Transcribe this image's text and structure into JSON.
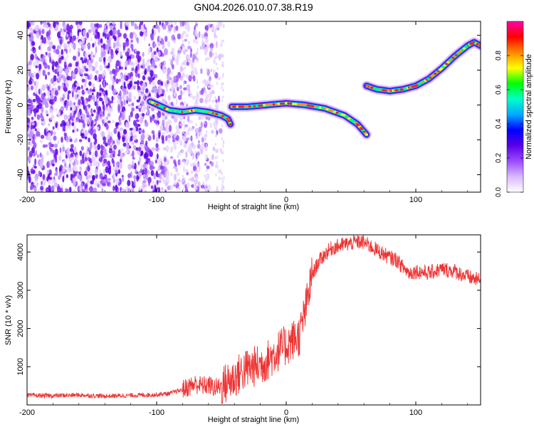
{
  "title": "GN04.2026.010.07.38.R19",
  "chart_data": [
    {
      "type": "heatmap",
      "xlabel": "Height of straight line (km)",
      "ylabel": "Frequency (Hz)",
      "xlim": [
        -200,
        150
      ],
      "ylim": [
        -50,
        48
      ],
      "xticks": [
        -200,
        -100,
        0,
        100
      ],
      "yticks": [
        -40,
        -20,
        0,
        20,
        40
      ],
      "colorbar": {
        "label": "Normalized spectral amplitude",
        "range": [
          0,
          1
        ],
        "ticks": [
          "0.0",
          "0.2",
          "0.4",
          "0.6",
          "0.8"
        ],
        "colors": [
          "#ffffff",
          "#d9b8ff",
          "#9a4cff",
          "#5a00e6",
          "#0000ff",
          "#00aaff",
          "#00ffcc",
          "#00ff00",
          "#ffff00",
          "#ff8800",
          "#ff0000",
          "#ff00aa"
        ]
      },
      "noise_region": {
        "x": [
          -200,
          -50
        ],
        "frequency": [
          -50,
          48
        ],
        "amplitude": 0.12
      },
      "ridge_segments": [
        {
          "name": "scattered",
          "points": [
            [
              -105,
              2
            ],
            [
              -90,
              -3
            ],
            [
              -80,
              -4
            ],
            [
              -70,
              -3
            ],
            [
              -60,
              -4
            ],
            [
              -50,
              -6
            ],
            [
              -45,
              -8
            ],
            [
              -43,
              -11
            ]
          ]
        },
        {
          "name": "middle",
          "points": [
            [
              -42,
              -1
            ],
            [
              -30,
              -1
            ],
            [
              -15,
              0
            ],
            [
              0,
              1
            ],
            [
              15,
              0
            ],
            [
              30,
              -2
            ],
            [
              45,
              -6
            ],
            [
              55,
              -11
            ],
            [
              62,
              -17
            ]
          ]
        },
        {
          "name": "upper",
          "points": [
            [
              62,
              11
            ],
            [
              70,
              9
            ],
            [
              80,
              8
            ],
            [
              90,
              9
            ],
            [
              100,
              11
            ],
            [
              110,
              15
            ],
            [
              120,
              21
            ],
            [
              130,
              28
            ],
            [
              140,
              34
            ],
            [
              145,
              36
            ],
            [
              150,
              34
            ]
          ]
        }
      ]
    },
    {
      "type": "line",
      "xlabel": "Height of straight line (km)",
      "ylabel": "SNR (10 * v/v)",
      "xlim": [
        -200,
        150
      ],
      "ylim": [
        0,
        4450
      ],
      "xticks": [
        -200,
        -100,
        0,
        100
      ],
      "yticks": [
        1000,
        2000,
        3000,
        4000
      ],
      "color": "#ee3333",
      "series": [
        {
          "name": "SNR",
          "x": [
            -200,
            -180,
            -160,
            -140,
            -120,
            -100,
            -90,
            -80,
            -75,
            -70,
            -65,
            -60,
            -55,
            -50,
            -45,
            -40,
            -35,
            -30,
            -25,
            -20,
            -15,
            -10,
            -5,
            0,
            5,
            10,
            15,
            20,
            25,
            30,
            35,
            40,
            45,
            50,
            55,
            60,
            65,
            70,
            75,
            80,
            85,
            90,
            95,
            100,
            110,
            120,
            130,
            140,
            150
          ],
          "y": [
            250,
            240,
            260,
            230,
            250,
            270,
            300,
            400,
            480,
            550,
            500,
            520,
            450,
            480,
            600,
            700,
            850,
            950,
            1000,
            1050,
            1150,
            1300,
            1450,
            1550,
            1700,
            1800,
            2500,
            3400,
            3750,
            3950,
            4100,
            4150,
            4200,
            4230,
            4270,
            4250,
            4150,
            4050,
            3950,
            3850,
            3800,
            3600,
            3450,
            3500,
            3450,
            3550,
            3500,
            3350,
            3250
          ]
        }
      ]
    }
  ]
}
